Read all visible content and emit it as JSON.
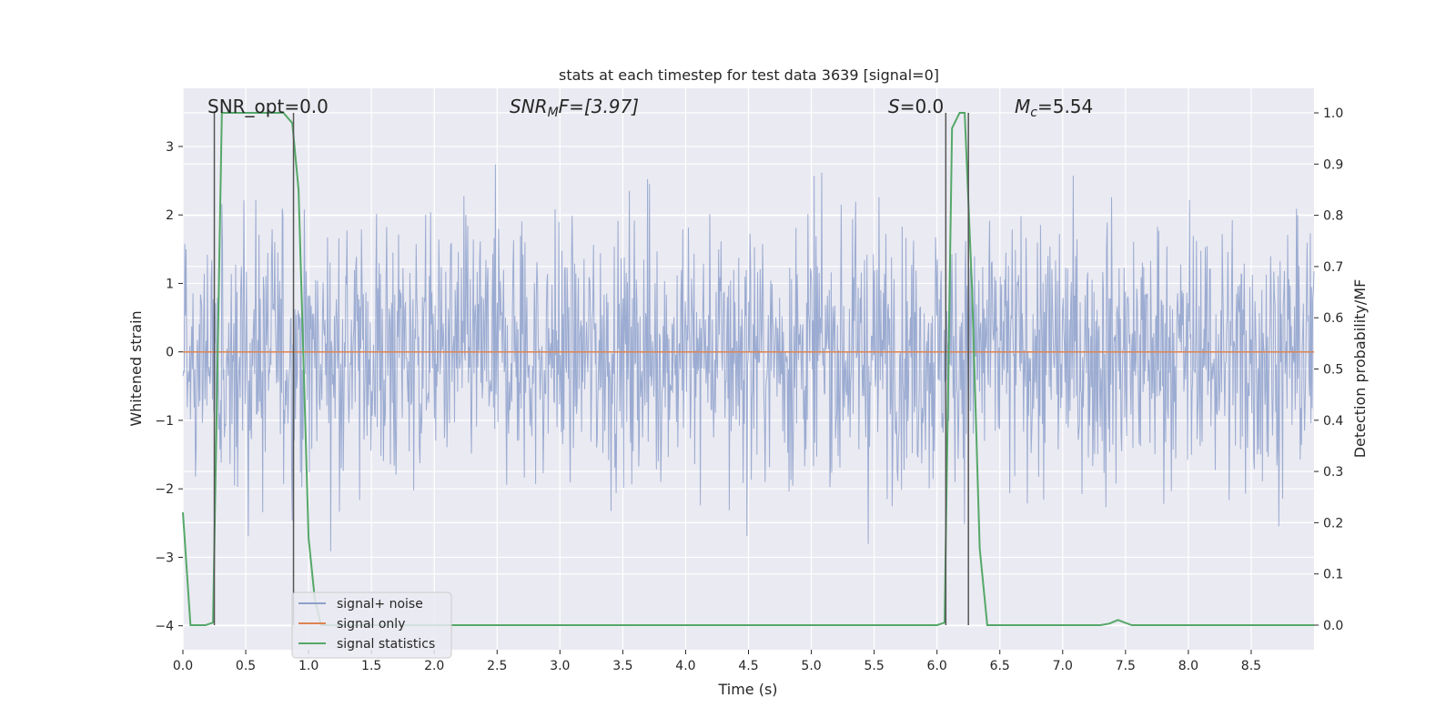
{
  "chart_data": {
    "type": "line",
    "title": "stats at each timestep for test data 3639 [signal=0]",
    "xlabel": "Time (s)",
    "ylabel": "Whitened strain",
    "y2label": "Detection probability/MF",
    "xlim": [
      0.0,
      9.0
    ],
    "ylim": [
      -4.35,
      3.85
    ],
    "y2lim": [
      -0.048,
      1.048
    ],
    "xticks": [
      "0.0",
      "0.5",
      "1.0",
      "1.5",
      "2.0",
      "2.5",
      "3.0",
      "3.5",
      "4.0",
      "4.5",
      "5.0",
      "5.5",
      "6.0",
      "6.5",
      "7.0",
      "7.5",
      "8.0",
      "8.5"
    ],
    "yticks": [
      "3",
      "2",
      "1",
      "0",
      "−1",
      "−2",
      "−3",
      "−4"
    ],
    "y2ticks": [
      "1.0",
      "0.9",
      "0.8",
      "0.7",
      "0.6",
      "0.5",
      "0.4",
      "0.3",
      "0.2",
      "0.1",
      "0.0"
    ],
    "grid": true,
    "legend_position": "lower-left",
    "annotations": {
      "snr_opt": "SNR_opt=0.0",
      "snr_mf": "SNR",
      "snr_mf_sub": "M",
      "snr_mf_rest": "F=[3.97]",
      "s_label": "S",
      "s_rest": "=0.0",
      "mc_label": "M",
      "mc_sub": "c",
      "mc_rest": "=5.54"
    },
    "vertical_lines_s": [
      0.25,
      0.88,
      6.07,
      6.25
    ],
    "noise": {
      "name": "signal+ noise",
      "color": "#8da0cb",
      "description": "whitened strain noise, approx gaussian, std ~1, peaks between -3.7 and 3.45"
    },
    "series": [
      {
        "name": "signal only",
        "color": "#dd8452",
        "x": [
          0.0,
          9.0
        ],
        "y": [
          0.0,
          0.0
        ]
      },
      {
        "name": "signal statistics",
        "color": "#55a868",
        "axis": "right",
        "x": [
          0.0,
          0.06,
          0.18,
          0.24,
          0.31,
          0.37,
          0.6,
          0.8,
          0.87,
          0.92,
          1.0,
          1.05,
          1.1,
          6.0,
          6.06,
          6.12,
          6.18,
          6.22,
          6.28,
          6.34,
          6.4,
          7.3,
          7.37,
          7.44,
          7.55,
          9.0
        ],
        "y": [
          0.22,
          0.0,
          0.0,
          0.005,
          1.0,
          1.0,
          1.0,
          1.0,
          0.98,
          0.85,
          0.17,
          0.05,
          0.0,
          0.0,
          0.005,
          0.97,
          1.0,
          1.0,
          0.65,
          0.15,
          0.0,
          0.0,
          0.003,
          0.01,
          0.0,
          0.0
        ]
      }
    ]
  }
}
